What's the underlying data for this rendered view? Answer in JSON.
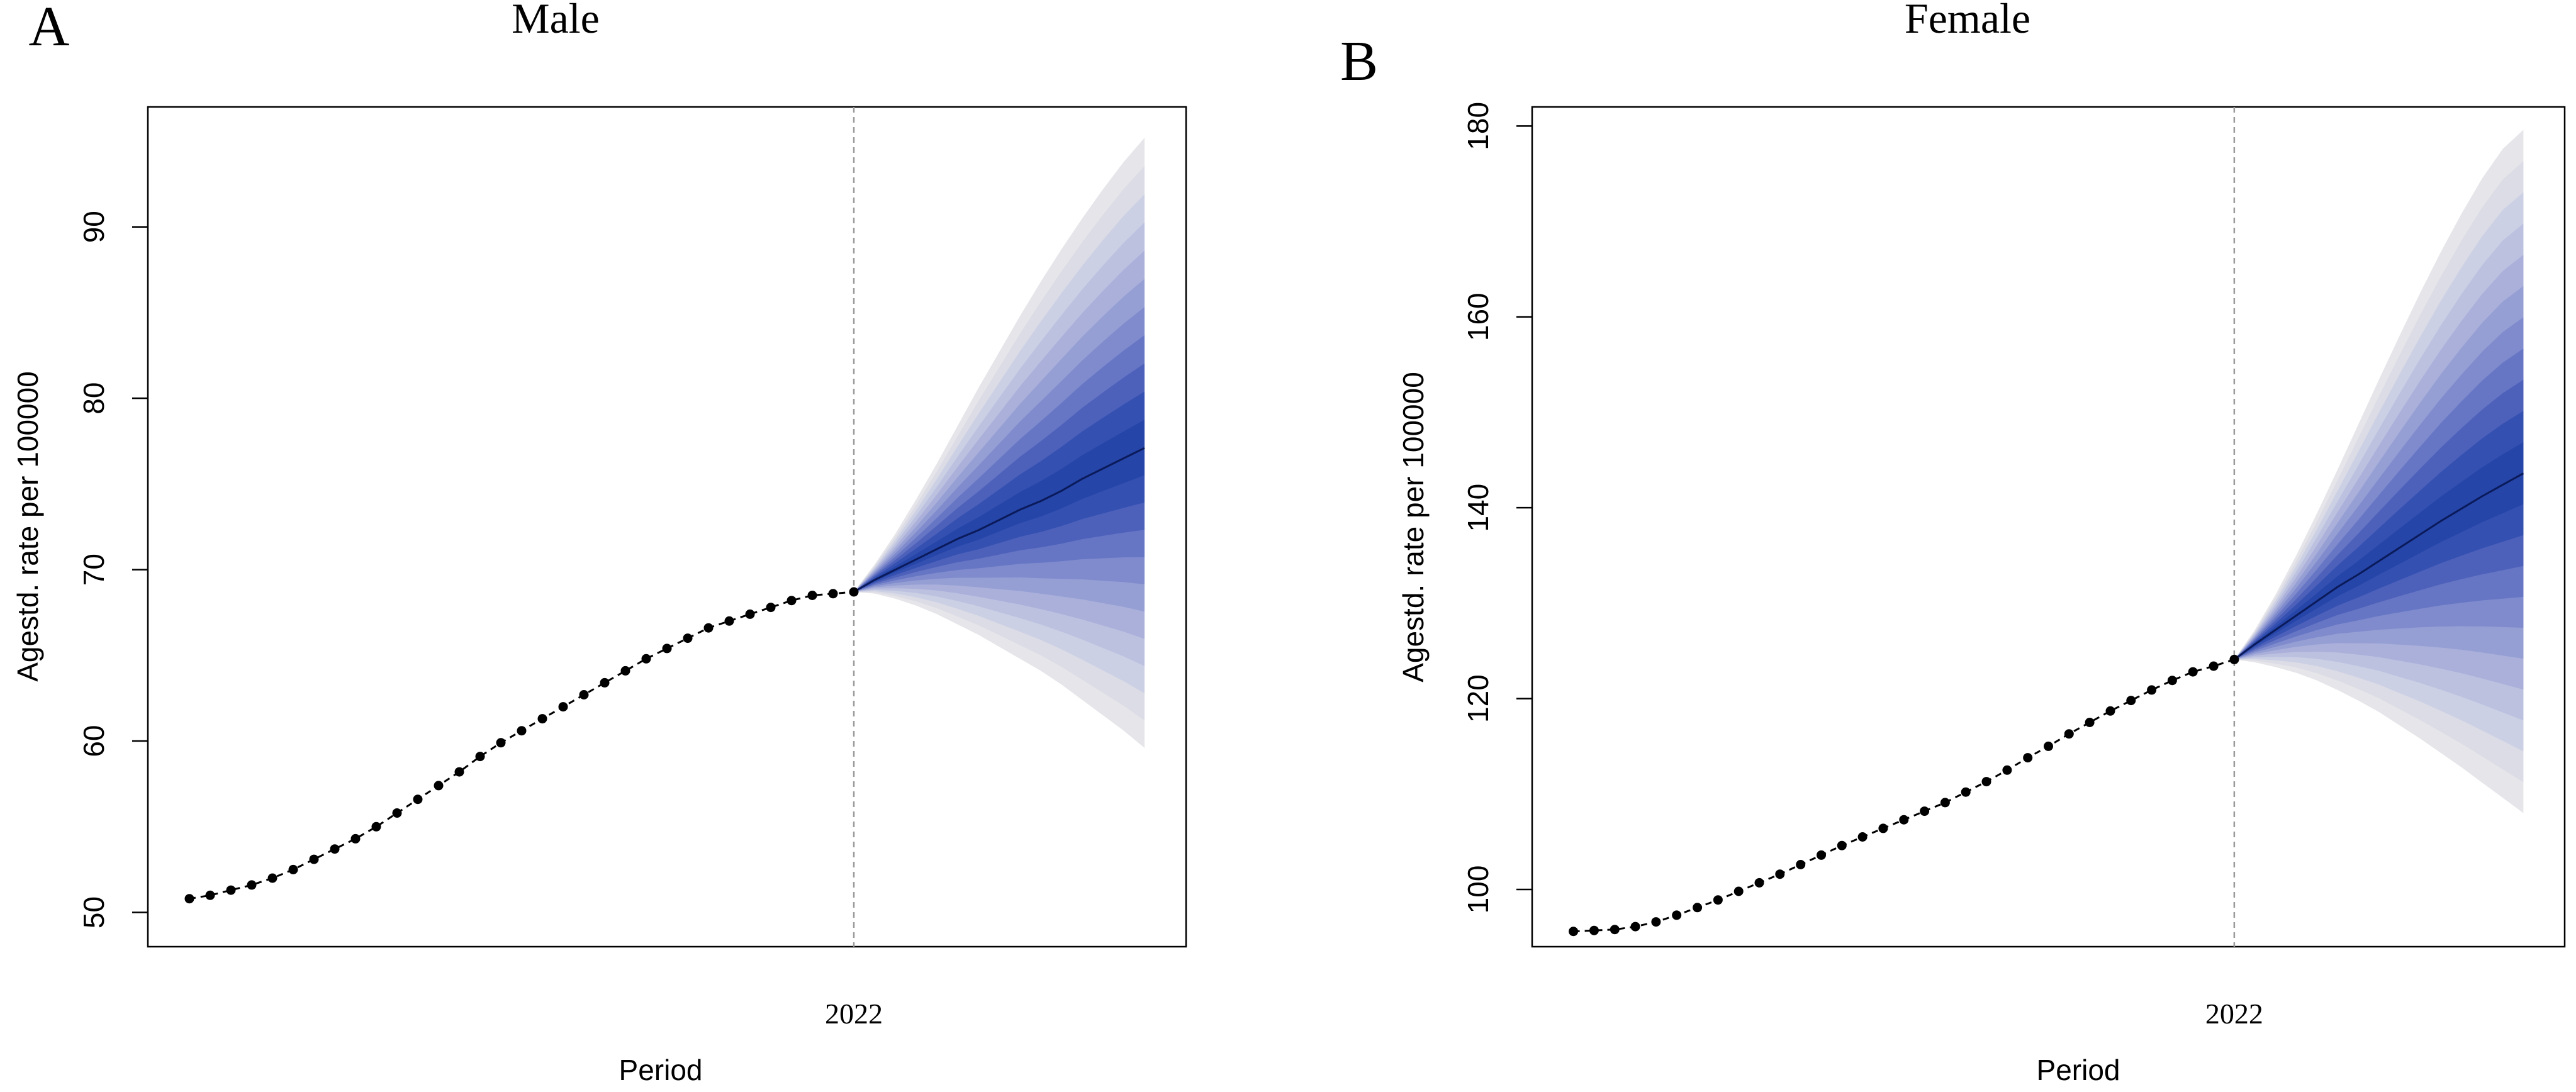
{
  "chart_data": [
    {
      "type": "line",
      "panel_label": "A",
      "title": "Male",
      "xlabel": "Period",
      "ylabel": "Agestd. rate per 100000",
      "ylim": [
        48.0,
        97.0
      ],
      "yticks": [
        50,
        60,
        70,
        80,
        90
      ],
      "x_range": [
        1988,
        2038
      ],
      "xticks": [
        2022
      ],
      "vline": 2022,
      "series": [
        {
          "x": [
            1990,
            1991,
            1992,
            1993,
            1994,
            1995,
            1996,
            1997,
            1998,
            1999,
            2000,
            2001,
            2002,
            2003,
            2004,
            2005,
            2006,
            2007,
            2008,
            2009,
            2010,
            2011,
            2012,
            2013,
            2014,
            2015,
            2016,
            2017,
            2018,
            2019,
            2020,
            2021,
            2022
          ],
          "values": [
            50.8,
            51.0,
            51.3,
            51.6,
            52.0,
            52.5,
            53.1,
            53.7,
            54.3,
            55.0,
            55.8,
            56.6,
            57.4,
            58.2,
            59.1,
            59.9,
            60.6,
            61.3,
            62.0,
            62.7,
            63.4,
            64.1,
            64.8,
            65.4,
            66.0,
            66.6,
            67.0,
            67.4,
            67.8,
            68.2,
            68.5,
            68.6,
            68.7
          ]
        }
      ],
      "projection": {
        "x": [
          2022,
          2023,
          2024,
          2025,
          2026,
          2027,
          2028,
          2029,
          2030,
          2031,
          2032,
          2033,
          2034,
          2035,
          2036
        ],
        "median": [
          68.7,
          69.4,
          70.0,
          70.6,
          71.2,
          71.8,
          72.3,
          72.9,
          73.5,
          74.0,
          74.6,
          75.3,
          75.9,
          76.5,
          77.1
        ],
        "upper_bound": [
          68.7,
          70.3,
          72.1,
          74.1,
          76.2,
          78.4,
          80.6,
          82.7,
          84.8,
          86.8,
          88.7,
          90.5,
          92.2,
          93.8,
          95.2
        ],
        "lower_bound": [
          68.7,
          68.6,
          68.3,
          67.9,
          67.4,
          66.8,
          66.2,
          65.5,
          64.8,
          64.1,
          63.3,
          62.4,
          61.5,
          60.6,
          59.6
        ]
      }
    },
    {
      "type": "line",
      "panel_label": "B",
      "title": "Female",
      "xlabel": "Period",
      "ylabel": "Agestd. rate per 100000",
      "ylim": [
        94.0,
        182.0
      ],
      "yticks": [
        100,
        120,
        140,
        160,
        180
      ],
      "x_range": [
        1988,
        2038
      ],
      "xticks": [
        2022
      ],
      "vline": 2022,
      "series": [
        {
          "x": [
            1990,
            1991,
            1992,
            1993,
            1994,
            1995,
            1996,
            1997,
            1998,
            1999,
            2000,
            2001,
            2002,
            2003,
            2004,
            2005,
            2006,
            2007,
            2008,
            2009,
            2010,
            2011,
            2012,
            2013,
            2014,
            2015,
            2016,
            2017,
            2018,
            2019,
            2020,
            2021,
            2022
          ],
          "values": [
            95.6,
            95.7,
            95.8,
            96.1,
            96.6,
            97.3,
            98.1,
            98.9,
            99.8,
            100.7,
            101.6,
            102.6,
            103.6,
            104.6,
            105.5,
            106.4,
            107.3,
            108.2,
            109.1,
            110.2,
            111.3,
            112.5,
            113.8,
            115.0,
            116.3,
            117.5,
            118.7,
            119.8,
            120.9,
            121.9,
            122.8,
            123.4,
            124.1
          ]
        }
      ],
      "projection": {
        "x": [
          2022,
          2023,
          2024,
          2025,
          2026,
          2027,
          2028,
          2029,
          2030,
          2031,
          2032,
          2033,
          2034,
          2035,
          2036
        ],
        "median": [
          124.1,
          125.7,
          127.2,
          128.7,
          130.2,
          131.7,
          133.0,
          134.4,
          135.8,
          137.2,
          138.6,
          139.9,
          141.2,
          142.4,
          143.6
        ],
        "upper_bound": [
          124.1,
          127.2,
          130.9,
          135.0,
          139.4,
          144.0,
          148.7,
          153.4,
          158.0,
          162.5,
          166.8,
          170.8,
          174.5,
          177.6,
          179.6
        ],
        "lower_bound": [
          124.1,
          123.8,
          123.3,
          122.7,
          121.9,
          120.9,
          119.8,
          118.6,
          117.2,
          115.8,
          114.3,
          112.8,
          111.2,
          109.6,
          108.0
        ]
      }
    }
  ]
}
